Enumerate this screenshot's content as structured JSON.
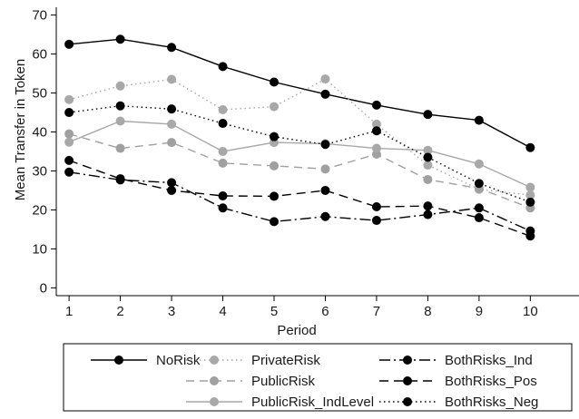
{
  "chart_data": {
    "type": "line",
    "title": "",
    "xlabel": "Period",
    "ylabel": "Mean Transfer in Token",
    "x": [
      1,
      2,
      3,
      4,
      5,
      6,
      7,
      8,
      9,
      10
    ],
    "xlim": [
      0.75,
      10.95
    ],
    "ylim": [
      -2,
      72
    ],
    "yticks": [
      0,
      10,
      20,
      30,
      40,
      50,
      60,
      70
    ],
    "grid": false,
    "legend_position": "bottom",
    "series": [
      {
        "name": "NoRisk",
        "color": "#000000",
        "dash": "solid",
        "values": [
          62.5,
          63.8,
          61.7,
          56.8,
          52.8,
          49.7,
          46.9,
          44.5,
          43.0,
          36.0
        ]
      },
      {
        "name": "PrivateRisk",
        "color": "#a8a8a8",
        "dash": "dotted",
        "values": [
          48.3,
          51.8,
          53.5,
          45.7,
          46.5,
          53.6,
          42.0,
          31.5,
          25.3,
          23.8
        ]
      },
      {
        "name": "PublicRisk",
        "color": "#a0a0a0",
        "dash": "dashed",
        "values": [
          39.5,
          35.8,
          37.3,
          32.0,
          31.3,
          30.5,
          34.3,
          27.8,
          25.5,
          20.5
        ]
      },
      {
        "name": "PublicRisk_IndLevel",
        "color": "#a8a8a8",
        "dash": "solid",
        "values": [
          37.4,
          42.8,
          42.0,
          35.0,
          37.3,
          37.0,
          35.8,
          35.3,
          31.8,
          25.8
        ]
      },
      {
        "name": "BothRisks_Ind",
        "color": "#000000",
        "dash": "dashdot",
        "values": [
          29.7,
          27.7,
          27.0,
          20.5,
          17.0,
          18.3,
          17.3,
          18.8,
          20.5,
          14.6
        ]
      },
      {
        "name": "BothRisks_Pos",
        "color": "#000000",
        "dash": "longdash",
        "values": [
          32.7,
          28.0,
          25.0,
          23.6,
          23.5,
          25.0,
          20.8,
          21.0,
          18.0,
          13.3
        ]
      },
      {
        "name": "BothRisks_Neg",
        "color": "#000000",
        "dash": "dotted",
        "values": [
          45.0,
          46.7,
          45.9,
          42.2,
          38.8,
          36.8,
          40.3,
          33.5,
          26.8,
          22.0
        ]
      }
    ],
    "legend": {
      "columns": [
        [
          "NoRisk"
        ],
        [
          "PrivateRisk",
          "PublicRisk",
          "PublicRisk_IndLevel"
        ],
        [
          "BothRisks_Ind",
          "BothRisks_Pos",
          "BothRisks_Neg"
        ]
      ]
    }
  }
}
